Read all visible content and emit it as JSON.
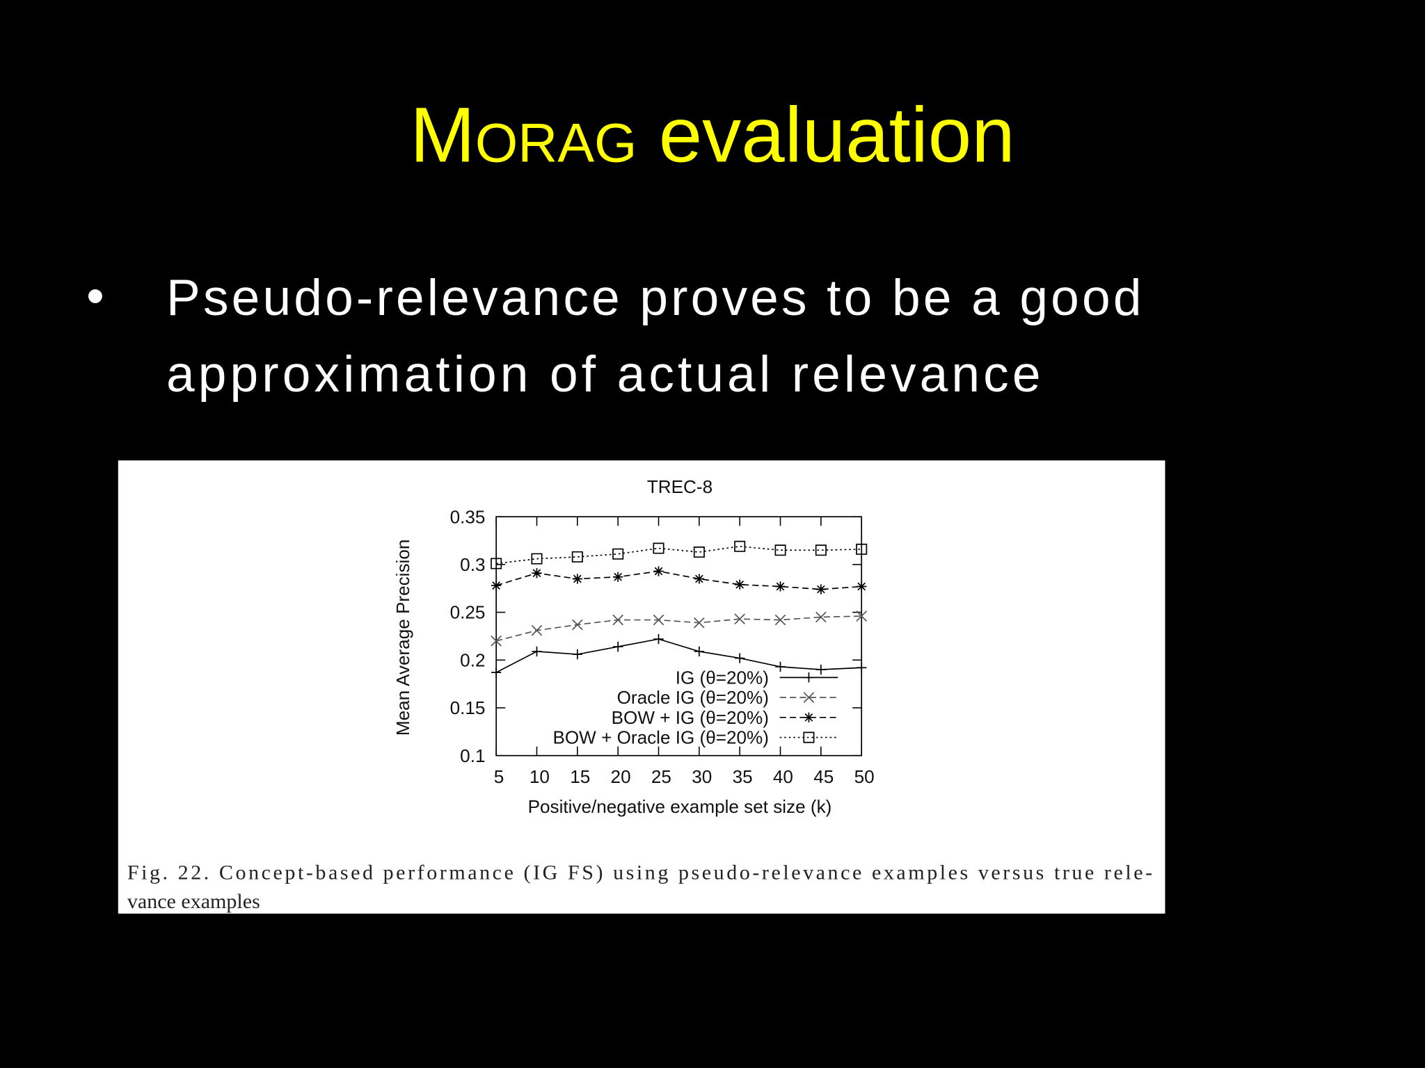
{
  "slide": {
    "title_smallcaps": "Morag",
    "title": "evaluation",
    "bullet": "•",
    "bullet_lines": [
      "Pseudo-relevance proves to be a good",
      "approximation of actual relevance"
    ],
    "caption_lines": [
      "Fig. 22.  Concept-based performance (IG FS) using pseudo-relevance examples versus true rele-",
      "vance examples"
    ]
  },
  "chart_data": {
    "type": "line",
    "title": "TREC-8",
    "x_label": "Positive/negative example set size (k)",
    "y_label": "Mean Average Precision",
    "x": [
      5,
      10,
      15,
      20,
      25,
      30,
      35,
      40,
      45,
      50
    ],
    "xlim": [
      5,
      50
    ],
    "xticks": [
      5,
      10,
      15,
      20,
      25,
      30,
      35,
      40,
      45,
      50
    ],
    "ylim": [
      0.1,
      0.35
    ],
    "yticks": [
      0.1,
      0.15,
      0.2,
      0.25,
      0.3,
      0.35
    ],
    "legend": "lower right",
    "series": [
      {
        "name": "IG (θ=20%)",
        "color": "#000000",
        "line_style": "solid",
        "marker": "plus",
        "values": [
          0.187,
          0.209,
          0.206,
          0.214,
          0.222,
          0.209,
          0.202,
          0.193,
          0.19,
          0.192
        ]
      },
      {
        "name": "Oracle IG (θ=20%)",
        "color": "#555555",
        "line_style": "dashed",
        "marker": "cross",
        "values": [
          0.22,
          0.231,
          0.237,
          0.242,
          0.242,
          0.239,
          0.243,
          0.242,
          0.245,
          0.246
        ]
      },
      {
        "name": "BOW + IG (θ=20%)",
        "color": "#000000",
        "line_style": "dashed",
        "marker": "star",
        "values": [
          0.278,
          0.291,
          0.285,
          0.287,
          0.293,
          0.285,
          0.279,
          0.277,
          0.274,
          0.277
        ]
      },
      {
        "name": "BOW + Oracle IG (θ=20%)",
        "color": "#000000",
        "line_style": "dotted",
        "marker": "square",
        "values": [
          0.301,
          0.306,
          0.308,
          0.311,
          0.317,
          0.313,
          0.319,
          0.315,
          0.315,
          0.316
        ]
      }
    ]
  }
}
